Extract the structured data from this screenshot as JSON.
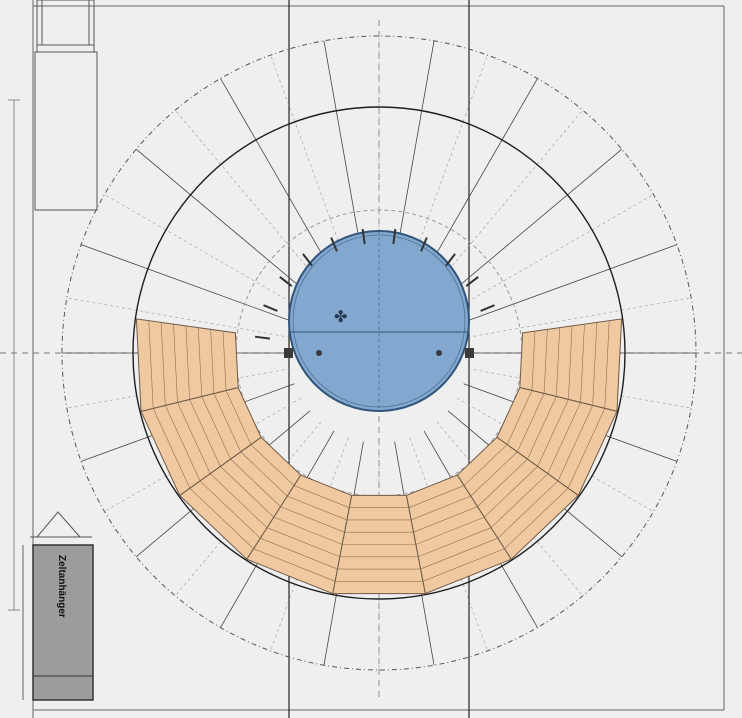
{
  "drawing": {
    "trailer_label": "Zeltanhänger",
    "dimension_left": "",
    "colors": {
      "background": "#efefef",
      "seating_fill": "#f0c9a0",
      "seating_stroke": "#6e5a46",
      "ring_fill": "#83a8cf",
      "ring_stroke": "#34557a",
      "trailer_fill": "#9c9c9c",
      "line": "#1e1e1e",
      "dashed": "#555555"
    },
    "layout": {
      "seat_sections": 9,
      "rows_per_section": 8,
      "radial_lines": 36
    }
  }
}
